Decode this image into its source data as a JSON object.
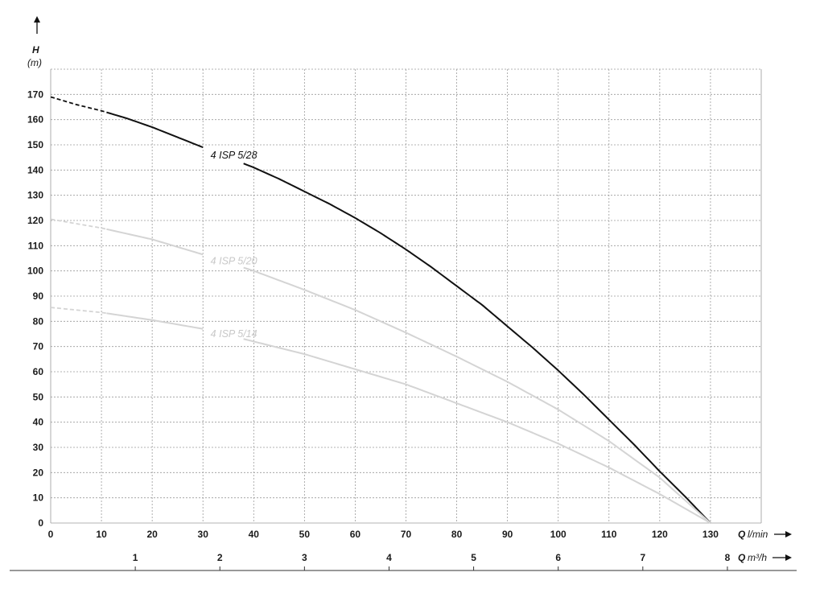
{
  "chart_data": {
    "type": "line",
    "y_axis": {
      "label": "H",
      "unit": "(m)",
      "ylim": [
        0,
        180
      ],
      "ticks": [
        0,
        10,
        20,
        30,
        40,
        50,
        60,
        70,
        80,
        90,
        100,
        110,
        120,
        130,
        140,
        150,
        160,
        170
      ]
    },
    "x_axis": {
      "label": "Q",
      "unit": "l/min",
      "xlim": [
        0,
        140
      ],
      "ticks": [
        0,
        10,
        20,
        30,
        40,
        50,
        60,
        70,
        80,
        90,
        100,
        110,
        120,
        130
      ]
    },
    "x2_axis": {
      "label": "Q",
      "unit": "m³/h",
      "ticks": [
        1,
        2,
        3,
        4,
        5,
        6,
        7,
        8
      ]
    },
    "grid": true,
    "series": [
      {
        "name": "4 ISP 5/28",
        "color": "#111111",
        "x": [
          0,
          5,
          10,
          15,
          20,
          25,
          30,
          35,
          40,
          45,
          50,
          55,
          60,
          65,
          70,
          75,
          80,
          85,
          90,
          95,
          100,
          105,
          110,
          115,
          120,
          125,
          130
        ],
        "y": [
          169,
          166,
          163.5,
          160.5,
          157,
          153,
          149,
          145,
          141,
          136.5,
          131.5,
          126.5,
          121,
          115,
          108.5,
          101.5,
          94,
          86.5,
          78,
          69.5,
          60.5,
          51,
          41,
          31,
          20.5,
          10.5,
          0
        ],
        "dashed_until_x": 11
      },
      {
        "name": "4 ISP 5/20",
        "color": "#d4d4d4",
        "x": [
          0,
          10,
          20,
          30,
          40,
          50,
          60,
          70,
          80,
          90,
          100,
          110,
          120,
          130
        ],
        "y": [
          120.5,
          117,
          112.5,
          106.5,
          100,
          92.5,
          84.5,
          75.5,
          66,
          56,
          45,
          32.5,
          18,
          0
        ],
        "dashed_until_x": 11
      },
      {
        "name": "4 ISP 5/14",
        "color": "#d4d4d4",
        "x": [
          0,
          10,
          20,
          30,
          40,
          50,
          60,
          70,
          80,
          90,
          100,
          110,
          120,
          130
        ],
        "y": [
          85.5,
          83.5,
          80.5,
          77,
          72,
          67,
          61,
          55,
          47.5,
          40,
          31.5,
          22,
          11.5,
          0
        ],
        "dashed_until_x": 11
      }
    ]
  }
}
